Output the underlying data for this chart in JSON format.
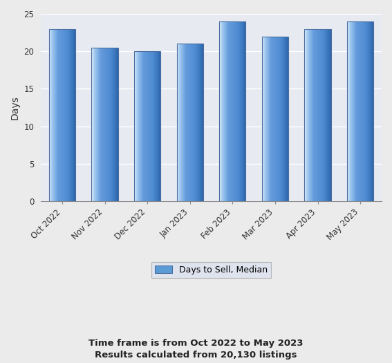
{
  "categories": [
    "Oct 2022",
    "Nov 2022",
    "Dec 2022",
    "Jan 2023",
    "Feb 2023",
    "Mar 2023",
    "Apr 2023",
    "May 2023"
  ],
  "values": [
    23,
    20.5,
    20,
    21,
    24,
    22,
    23,
    24
  ],
  "ylim": [
    0,
    25
  ],
  "yticks": [
    0,
    5,
    10,
    15,
    20,
    25
  ],
  "ylabel": "Days",
  "plot_bg_color": "#e8eaf2",
  "fig_bg_color": "#ebebeb",
  "legend_label": "Days to Sell, Median",
  "legend_bg": "#dde2f0",
  "legend_edge": "#aaaaaa",
  "footer_line1": "Time frame is from Oct 2022 to May 2023",
  "footer_line2": "Results calculated from 20,130 listings",
  "footer_color": "#222222",
  "grid_color": "#ffffff",
  "axis_label_fontsize": 10,
  "tick_fontsize": 8.5,
  "footer_fontsize": 9.5,
  "bar_left_color": "#d0e8fa",
  "bar_mid_color": "#5b9bd5",
  "bar_right_color": "#2e5f9a",
  "bar_edge_color": "#4a7fb5"
}
